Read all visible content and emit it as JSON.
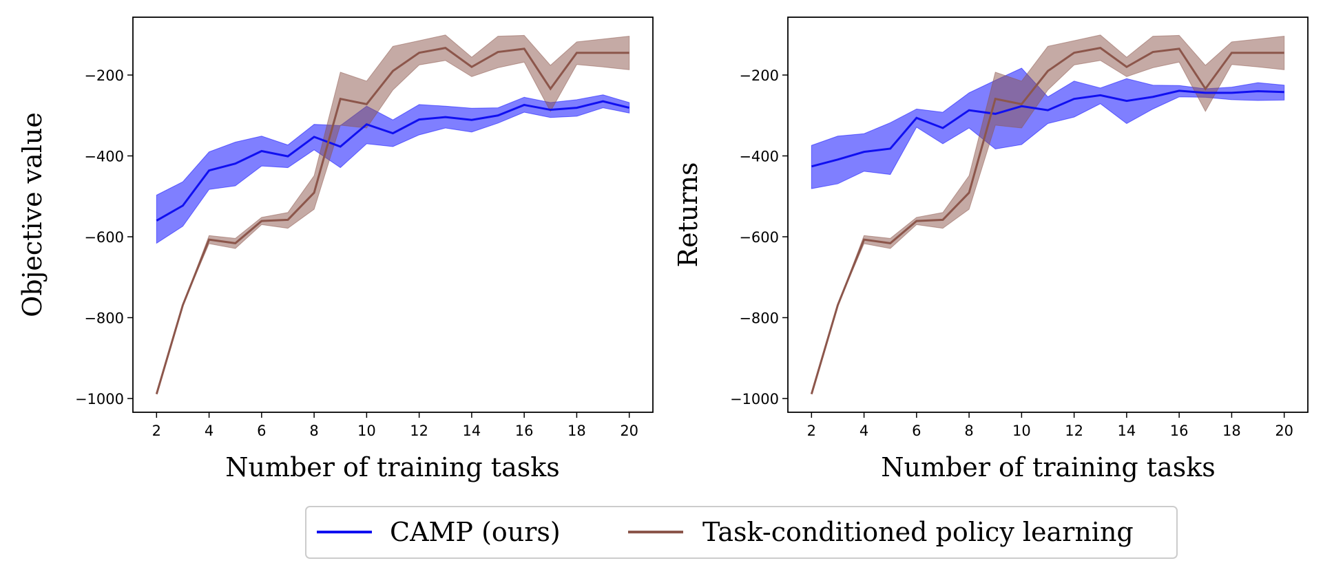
{
  "colors": {
    "camp": "#1010f0",
    "camp_fill": "#0000ff",
    "task": "#8c564b",
    "task_fill": "#8c564b"
  },
  "legend": {
    "items": [
      {
        "label": "CAMP (ours)",
        "color": "#1010f0"
      },
      {
        "label": "Task-conditioned policy learning",
        "color": "#8c564b"
      }
    ],
    "placement": "bottom-center"
  },
  "chart_data": [
    {
      "type": "line",
      "xlabel": "Number of training tasks",
      "ylabel": "Objective value",
      "xlim": [
        1.1,
        20.9
      ],
      "ylim": [
        -1034,
        -57
      ],
      "xticks": [
        2,
        4,
        6,
        8,
        10,
        12,
        14,
        16,
        18,
        20
      ],
      "yticks": [
        -1000,
        -800,
        -600,
        -400,
        -200
      ],
      "grid": false,
      "x": [
        2,
        3,
        4,
        5,
        6,
        7,
        8,
        9,
        10,
        11,
        12,
        13,
        14,
        15,
        16,
        17,
        18,
        19,
        20
      ],
      "series": [
        {
          "name": "CAMP (ours)",
          "mean": [
            -560,
            -523,
            -436,
            -419,
            -388,
            -401,
            -353,
            -377,
            -322,
            -344,
            -310,
            -304,
            -311,
            -300,
            -274,
            -286,
            -281,
            -265,
            -281
          ],
          "upper": [
            -497,
            -464,
            -390,
            -366,
            -351,
            -373,
            -322,
            -325,
            -277,
            -311,
            -273,
            -277,
            -282,
            -281,
            -255,
            -268,
            -261,
            -249,
            -268
          ],
          "lower": [
            -616,
            -574,
            -483,
            -474,
            -425,
            -429,
            -385,
            -429,
            -370,
            -377,
            -348,
            -331,
            -341,
            -319,
            -292,
            -305,
            -302,
            -281,
            -294
          ]
        },
        {
          "name": "Task-conditioned policy learning",
          "mean": [
            -989,
            -769,
            -607,
            -616,
            -561,
            -558,
            -491,
            -259,
            -272,
            -190,
            -145,
            -133,
            -180,
            -143,
            -135,
            -234,
            -145,
            -145,
            -145
          ],
          "upper": [
            -989,
            -769,
            -597,
            -604,
            -552,
            -540,
            -449,
            -193,
            -215,
            -129,
            -115,
            -101,
            -156,
            -104,
            -102,
            -176,
            -118,
            -111,
            -104
          ],
          "lower": [
            -989,
            -769,
            -617,
            -629,
            -570,
            -579,
            -532,
            -324,
            -331,
            -237,
            -175,
            -164,
            -204,
            -182,
            -168,
            -290,
            -174,
            -180,
            -187
          ]
        }
      ]
    },
    {
      "type": "line",
      "xlabel": "Number of training tasks",
      "ylabel": "Returns",
      "xlim": [
        1.1,
        20.9
      ],
      "ylim": [
        -1034,
        -57
      ],
      "xticks": [
        2,
        4,
        6,
        8,
        10,
        12,
        14,
        16,
        18,
        20
      ],
      "yticks": [
        -1000,
        -800,
        -600,
        -400,
        -200
      ],
      "grid": false,
      "x": [
        2,
        3,
        4,
        5,
        6,
        7,
        8,
        9,
        10,
        11,
        12,
        13,
        14,
        15,
        16,
        17,
        18,
        19,
        20
      ],
      "series": [
        {
          "name": "CAMP (ours)",
          "mean": [
            -426,
            -409,
            -390,
            -382,
            -306,
            -331,
            -287,
            -296,
            -277,
            -287,
            -259,
            -250,
            -264,
            -254,
            -239,
            -244,
            -244,
            -240,
            -242
          ],
          "upper": [
            -374,
            -351,
            -345,
            -318,
            -284,
            -292,
            -244,
            -213,
            -183,
            -254,
            -215,
            -232,
            -209,
            -225,
            -226,
            -234,
            -230,
            -219,
            -225
          ],
          "lower": [
            -481,
            -469,
            -438,
            -446,
            -329,
            -370,
            -331,
            -383,
            -372,
            -320,
            -304,
            -271,
            -320,
            -284,
            -254,
            -255,
            -261,
            -263,
            -262
          ]
        },
        {
          "name": "Task-conditioned policy learning",
          "mean": [
            -989,
            -769,
            -607,
            -616,
            -561,
            -558,
            -491,
            -259,
            -272,
            -190,
            -145,
            -133,
            -180,
            -143,
            -135,
            -234,
            -145,
            -145,
            -145
          ],
          "upper": [
            -989,
            -769,
            -597,
            -604,
            -552,
            -540,
            -449,
            -193,
            -215,
            -129,
            -115,
            -101,
            -156,
            -104,
            -102,
            -176,
            -118,
            -111,
            -104
          ],
          "lower": [
            -989,
            -769,
            -617,
            -629,
            -570,
            -579,
            -532,
            -324,
            -331,
            -237,
            -175,
            -164,
            -204,
            -182,
            -168,
            -290,
            -174,
            -180,
            -187
          ]
        }
      ]
    }
  ]
}
